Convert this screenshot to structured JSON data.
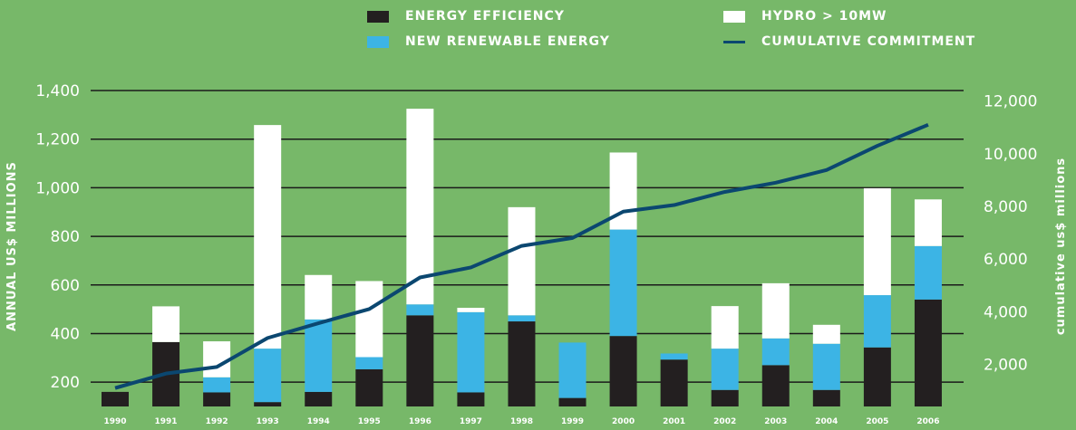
{
  "colors": {
    "background": "#77b869",
    "energy_efficiency": "#231f20",
    "new_renewable": "#3cb4e5",
    "hydro": "#ffffff",
    "cumulative_line": "#0b4770",
    "gridline": "#1a1a1a"
  },
  "legend": {
    "energy_efficiency": "ENERGY EFFICIENCY",
    "new_renewable": "NEW RENEWABLE ENERGY",
    "hydro": "HYDRO > 10MW",
    "cumulative": "CUMULATIVE COMMITMENT"
  },
  "chart_data": {
    "type": "bar",
    "stacked": true,
    "categories": [
      "1990",
      "1991",
      "1992",
      "1993",
      "1994",
      "1995",
      "1996",
      "1997",
      "1998",
      "1999",
      "2000",
      "2001",
      "2002",
      "2003",
      "2004",
      "2005",
      "2006"
    ],
    "series": [
      {
        "name": "ENERGY EFFICIENCY",
        "values": [
          160,
          365,
          158,
          118,
          160,
          253,
          475,
          158,
          450,
          135,
          390,
          293,
          168,
          270,
          168,
          343,
          540
        ]
      },
      {
        "name": "NEW RENEWABLE ENERGY",
        "values": [
          0,
          0,
          62,
          220,
          298,
          50,
          45,
          330,
          25,
          228,
          438,
          25,
          170,
          110,
          190,
          215,
          220
        ]
      },
      {
        "name": "HYDRO > 10MW",
        "values": [
          0,
          147,
          148,
          920,
          183,
          313,
          805,
          18,
          445,
          0,
          317,
          0,
          175,
          227,
          78,
          440,
          192
        ]
      }
    ],
    "line_series": {
      "name": "CUMULATIVE COMMITMENT",
      "values": [
        1100,
        1650,
        1900,
        3000,
        3560,
        4100,
        5300,
        5680,
        6500,
        6800,
        7800,
        8050,
        8550,
        8900,
        9380,
        10300,
        11100
      ]
    },
    "ylabel": "ANNUAL US$ MILLIONS",
    "ylabel_right": "cumulative us$ millions",
    "yticks_left": [
      "200",
      "400",
      "600",
      "800",
      "1,000",
      "1,200",
      "1,400"
    ],
    "yticks_right": [
      "2,000",
      "4,000",
      "6,000",
      "8,000",
      "10,000",
      "12,000"
    ],
    "ylim_left": [
      100,
      1400
    ],
    "ylim_right": [
      400,
      12400
    ],
    "grid": true
  }
}
